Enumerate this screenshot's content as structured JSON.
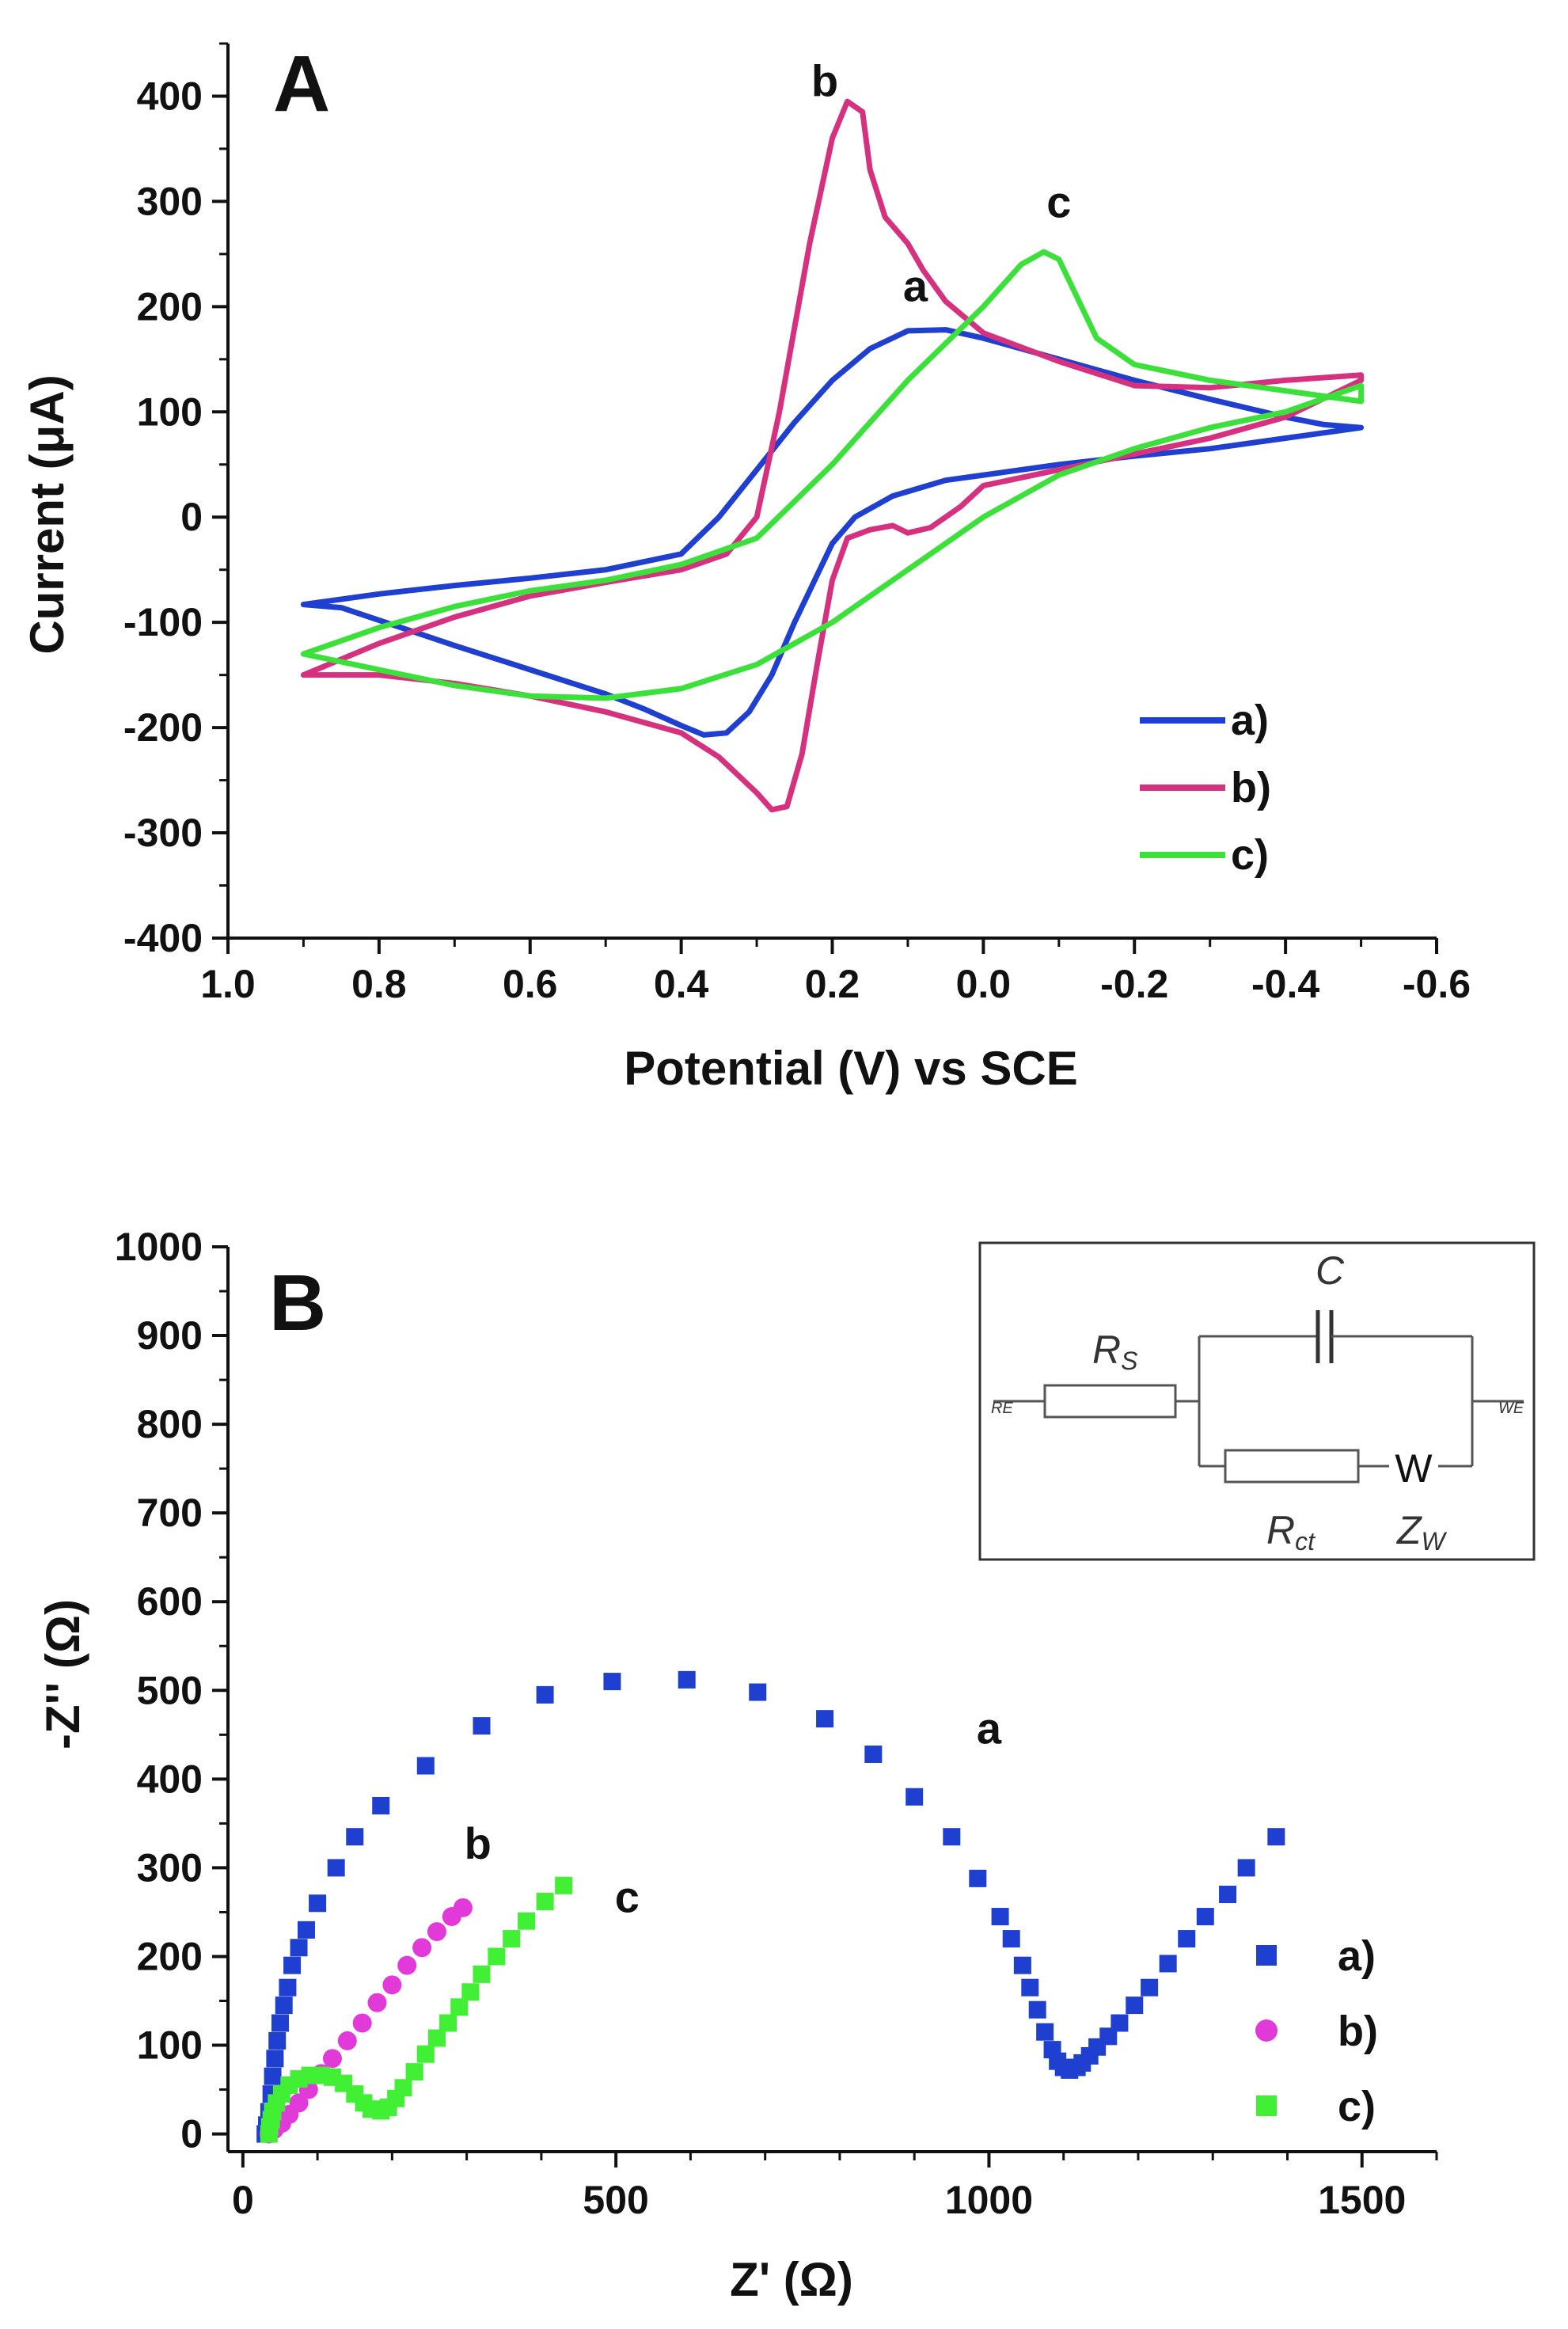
{
  "chart_data": [
    {
      "panel": "A",
      "type": "line",
      "title": "",
      "xlabel": "Potential (V) vs SCE",
      "ylabel": "Current (μA)",
      "xlim": [
        1.0,
        -0.6
      ],
      "ylim": [
        -400,
        450
      ],
      "x_ticks": [
        "1.0",
        "0.8",
        "0.6",
        "0.4",
        "0.2",
        "0.0",
        "-0.2",
        "-0.4",
        "-0.6"
      ],
      "y_ticks": [
        "-400",
        "-300",
        "-200",
        "-100",
        "0",
        "100",
        "200",
        "300",
        "400"
      ],
      "legend_position": "bottom-right",
      "annotations": [
        {
          "text": "a",
          "x": 0.09,
          "y": 205
        },
        {
          "text": "b",
          "x": 0.21,
          "y": 400
        },
        {
          "text": "c",
          "x": -0.1,
          "y": 285
        }
      ],
      "series": [
        {
          "name": "a)",
          "color": "#1f3fd0",
          "points": [
            [
              0.9,
              -83
            ],
            [
              0.85,
              -86
            ],
            [
              0.8,
              -98
            ],
            [
              0.7,
              -122
            ],
            [
              0.6,
              -145
            ],
            [
              0.5,
              -168
            ],
            [
              0.45,
              -182
            ],
            [
              0.4,
              -198
            ],
            [
              0.37,
              -207
            ],
            [
              0.34,
              -205
            ],
            [
              0.31,
              -185
            ],
            [
              0.28,
              -150
            ],
            [
              0.25,
              -100
            ],
            [
              0.22,
              -55
            ],
            [
              0.2,
              -25
            ],
            [
              0.17,
              0
            ],
            [
              0.12,
              20
            ],
            [
              0.05,
              35
            ],
            [
              0.0,
              40
            ],
            [
              -0.1,
              50
            ],
            [
              -0.2,
              58
            ],
            [
              -0.3,
              65
            ],
            [
              -0.4,
              75
            ],
            [
              -0.5,
              85
            ],
            [
              -0.5,
              85
            ],
            [
              -0.45,
              88
            ],
            [
              -0.4,
              95
            ],
            [
              -0.3,
              112
            ],
            [
              -0.2,
              130
            ],
            [
              -0.1,
              150
            ],
            [
              0.0,
              170
            ],
            [
              0.05,
              178
            ],
            [
              0.1,
              177
            ],
            [
              0.15,
              160
            ],
            [
              0.2,
              130
            ],
            [
              0.25,
              90
            ],
            [
              0.3,
              45
            ],
            [
              0.35,
              0
            ],
            [
              0.4,
              -35
            ],
            [
              0.5,
              -50
            ],
            [
              0.6,
              -58
            ],
            [
              0.7,
              -65
            ],
            [
              0.8,
              -73
            ],
            [
              0.9,
              -83
            ]
          ]
        },
        {
          "name": "b)",
          "color": "#d6317f",
          "points": [
            [
              0.9,
              -150
            ],
            [
              0.8,
              -150
            ],
            [
              0.7,
              -158
            ],
            [
              0.6,
              -170
            ],
            [
              0.5,
              -185
            ],
            [
              0.4,
              -205
            ],
            [
              0.35,
              -228
            ],
            [
              0.3,
              -262
            ],
            [
              0.28,
              -278
            ],
            [
              0.26,
              -275
            ],
            [
              0.24,
              -225
            ],
            [
              0.22,
              -140
            ],
            [
              0.2,
              -60
            ],
            [
              0.18,
              -20
            ],
            [
              0.15,
              -12
            ],
            [
              0.12,
              -8
            ],
            [
              0.1,
              -15
            ],
            [
              0.07,
              -10
            ],
            [
              0.03,
              10
            ],
            [
              0.0,
              30
            ],
            [
              -0.1,
              45
            ],
            [
              -0.2,
              60
            ],
            [
              -0.3,
              75
            ],
            [
              -0.4,
              95
            ],
            [
              -0.5,
              130
            ],
            [
              -0.5,
              135
            ],
            [
              -0.4,
              130
            ],
            [
              -0.3,
              123
            ],
            [
              -0.2,
              125
            ],
            [
              -0.1,
              148
            ],
            [
              0.0,
              175
            ],
            [
              0.05,
              205
            ],
            [
              0.08,
              235
            ],
            [
              0.1,
              260
            ],
            [
              0.13,
              285
            ],
            [
              0.15,
              330
            ],
            [
              0.16,
              385
            ],
            [
              0.18,
              395
            ],
            [
              0.2,
              360
            ],
            [
              0.23,
              260
            ],
            [
              0.27,
              100
            ],
            [
              0.3,
              0
            ],
            [
              0.34,
              -35
            ],
            [
              0.4,
              -50
            ],
            [
              0.5,
              -62
            ],
            [
              0.6,
              -75
            ],
            [
              0.7,
              -95
            ],
            [
              0.8,
              -120
            ],
            [
              0.9,
              -150
            ]
          ]
        },
        {
          "name": "c)",
          "color": "#3ce03a",
          "points": [
            [
              0.9,
              -130
            ],
            [
              0.8,
              -145
            ],
            [
              0.7,
              -160
            ],
            [
              0.6,
              -170
            ],
            [
              0.5,
              -172
            ],
            [
              0.4,
              -163
            ],
            [
              0.3,
              -140
            ],
            [
              0.2,
              -100
            ],
            [
              0.1,
              -50
            ],
            [
              0.0,
              0
            ],
            [
              -0.1,
              40
            ],
            [
              -0.2,
              65
            ],
            [
              -0.3,
              85
            ],
            [
              -0.4,
              100
            ],
            [
              -0.5,
              125
            ],
            [
              -0.5,
              110
            ],
            [
              -0.4,
              120
            ],
            [
              -0.3,
              130
            ],
            [
              -0.2,
              145
            ],
            [
              -0.15,
              170
            ],
            [
              -0.12,
              215
            ],
            [
              -0.1,
              245
            ],
            [
              -0.08,
              252
            ],
            [
              -0.05,
              240
            ],
            [
              0.0,
              200
            ],
            [
              0.1,
              130
            ],
            [
              0.2,
              50
            ],
            [
              0.3,
              -20
            ],
            [
              0.4,
              -45
            ],
            [
              0.5,
              -60
            ],
            [
              0.6,
              -70
            ],
            [
              0.7,
              -85
            ],
            [
              0.8,
              -105
            ],
            [
              0.9,
              -130
            ]
          ]
        }
      ]
    },
    {
      "panel": "B",
      "type": "scatter",
      "title": "",
      "xlabel": "Z' (Ω)",
      "ylabel": "-Z'' (Ω)",
      "xlim": [
        -20,
        1600
      ],
      "ylim": [
        -20,
        1000
      ],
      "x_ticks": [
        "0",
        "500",
        "1000",
        "1500"
      ],
      "y_ticks": [
        "0",
        "100",
        "200",
        "300",
        "400",
        "500",
        "600",
        "700",
        "800",
        "900",
        "1000"
      ],
      "legend_position": "bottom-right",
      "annotations": [
        {
          "text": "a",
          "x": 1000,
          "y": 440
        },
        {
          "text": "b",
          "x": 315,
          "y": 310
        },
        {
          "text": "c",
          "x": 515,
          "y": 250
        }
      ],
      "inset": {
        "Rs": "R",
        "Rs_sub": "S",
        "C": "C",
        "Rct": "R",
        "Rct_sub": "ct",
        "Zw": "Z",
        "Zw_sub": "W",
        "W": "W",
        "RE": "RE",
        "WE": "WE"
      },
      "series": [
        {
          "name": "a)",
          "color": "#1f3fd0",
          "marker": "square",
          "points": [
            [
              30,
              0
            ],
            [
              32,
              10
            ],
            [
              35,
              25
            ],
            [
              38,
              45
            ],
            [
              40,
              65
            ],
            [
              43,
              85
            ],
            [
              46,
              105
            ],
            [
              50,
              125
            ],
            [
              55,
              145
            ],
            [
              60,
              165
            ],
            [
              66,
              190
            ],
            [
              75,
              210
            ],
            [
              85,
              230
            ],
            [
              100,
              260
            ],
            [
              125,
              300
            ],
            [
              150,
              335
            ],
            [
              185,
              370
            ],
            [
              245,
              415
            ],
            [
              320,
              460
            ],
            [
              405,
              495
            ],
            [
              495,
              510
            ],
            [
              595,
              512
            ],
            [
              690,
              498
            ],
            [
              780,
              468
            ],
            [
              845,
              428
            ],
            [
              900,
              380
            ],
            [
              950,
              335
            ],
            [
              985,
              288
            ],
            [
              1015,
              245
            ],
            [
              1030,
              220
            ],
            [
              1045,
              190
            ],
            [
              1055,
              165
            ],
            [
              1065,
              140
            ],
            [
              1075,
              115
            ],
            [
              1085,
              95
            ],
            [
              1092,
              82
            ],
            [
              1100,
              75
            ],
            [
              1108,
              72
            ],
            [
              1118,
              75
            ],
            [
              1125,
              80
            ],
            [
              1135,
              88
            ],
            [
              1145,
              98
            ],
            [
              1160,
              110
            ],
            [
              1175,
              125
            ],
            [
              1195,
              145
            ],
            [
              1215,
              165
            ],
            [
              1240,
              192
            ],
            [
              1265,
              220
            ],
            [
              1290,
              245
            ],
            [
              1320,
              270
            ],
            [
              1345,
              300
            ],
            [
              1385,
              335
            ]
          ]
        },
        {
          "name": "b)",
          "color": "#e23ad8",
          "marker": "circle",
          "points": [
            [
              35,
              0
            ],
            [
              42,
              5
            ],
            [
              52,
              12
            ],
            [
              62,
              22
            ],
            [
              75,
              35
            ],
            [
              88,
              50
            ],
            [
              105,
              68
            ],
            [
              120,
              85
            ],
            [
              140,
              105
            ],
            [
              160,
              125
            ],
            [
              180,
              148
            ],
            [
              200,
              168
            ],
            [
              220,
              190
            ],
            [
              240,
              210
            ],
            [
              260,
              228
            ],
            [
              280,
              245
            ],
            [
              295,
              255
            ]
          ]
        },
        {
          "name": "c)",
          "color": "#41ef35",
          "marker": "square",
          "points": [
            [
              35,
              0
            ],
            [
              36,
              8
            ],
            [
              38,
              16
            ],
            [
              40,
              25
            ],
            [
              45,
              35
            ],
            [
              52,
              45
            ],
            [
              62,
              55
            ],
            [
              75,
              62
            ],
            [
              90,
              66
            ],
            [
              105,
              66
            ],
            [
              120,
              64
            ],
            [
              135,
              57
            ],
            [
              150,
              45
            ],
            [
              162,
              35
            ],
            [
              172,
              28
            ],
            [
              185,
              26
            ],
            [
              195,
              30
            ],
            [
              205,
              40
            ],
            [
              215,
              52
            ],
            [
              230,
              70
            ],
            [
              245,
              90
            ],
            [
              260,
              108
            ],
            [
              275,
              125
            ],
            [
              290,
              143
            ],
            [
              305,
              160
            ],
            [
              320,
              180
            ],
            [
              340,
              200
            ],
            [
              360,
              220
            ],
            [
              380,
              240
            ],
            [
              405,
              262
            ],
            [
              430,
              280
            ]
          ]
        }
      ]
    }
  ]
}
